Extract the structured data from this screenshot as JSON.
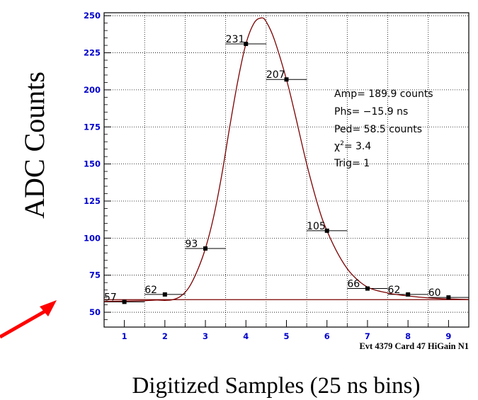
{
  "chart_data": {
    "type": "scatter",
    "title": "",
    "xlabel": "Digitized Samples (25 ns bins)",
    "ylabel": "ADC Counts",
    "xlim": [
      0.5,
      9.5
    ],
    "ylim": [
      40,
      252
    ],
    "x_ticks": [
      "1",
      "2",
      "3",
      "4",
      "5",
      "6",
      "7",
      "8",
      "9"
    ],
    "y_ticks": [
      "50",
      "75",
      "100",
      "125",
      "150",
      "175",
      "200",
      "225",
      "250"
    ],
    "grid": true,
    "points": [
      {
        "x": 1,
        "y": 57,
        "label": "57"
      },
      {
        "x": 2,
        "y": 62,
        "label": "62"
      },
      {
        "x": 3,
        "y": 93,
        "label": "93"
      },
      {
        "x": 4,
        "y": 231,
        "label": "231"
      },
      {
        "x": 5,
        "y": 207,
        "label": "207"
      },
      {
        "x": 6,
        "y": 105,
        "label": "105"
      },
      {
        "x": 7,
        "y": 66,
        "label": "66"
      },
      {
        "x": 8,
        "y": 62,
        "label": "62"
      },
      {
        "x": 9,
        "y": 60,
        "label": "60"
      }
    ],
    "pedestal_line": 58.5,
    "fit_curve": {
      "description_peak_y": 248,
      "samples": [
        [
          0.5,
          57.3
        ],
        [
          1.0,
          57.5
        ],
        [
          1.5,
          57.8
        ],
        [
          1.8,
          58.2
        ],
        [
          2.0,
          58.0
        ],
        [
          2.2,
          58.5
        ],
        [
          2.4,
          61
        ],
        [
          2.6,
          67
        ],
        [
          2.8,
          78
        ],
        [
          3.0,
          93
        ],
        [
          3.2,
          114
        ],
        [
          3.4,
          142
        ],
        [
          3.6,
          175
        ],
        [
          3.8,
          206
        ],
        [
          4.0,
          231
        ],
        [
          4.2,
          245
        ],
        [
          4.38,
          248.5
        ],
        [
          4.5,
          246
        ],
        [
          4.7,
          234
        ],
        [
          5.0,
          207
        ],
        [
          5.2,
          185
        ],
        [
          5.5,
          150
        ],
        [
          5.8,
          120
        ],
        [
          6.0,
          105
        ],
        [
          6.3,
          88
        ],
        [
          6.6,
          76
        ],
        [
          7.0,
          67
        ],
        [
          7.5,
          63
        ],
        [
          8.0,
          61
        ],
        [
          8.5,
          59.7
        ],
        [
          9.0,
          59
        ],
        [
          9.5,
          58.6
        ]
      ]
    },
    "fit_results": {
      "amp": "Amp= 189.9 counts",
      "phs": "Phs= −15.9 ns",
      "ped": "Ped= 58.5 counts",
      "chi2": "= 3.4",
      "chi2_symbol": "χ",
      "chi2_sup": "2",
      "trig": "Trig= 1"
    },
    "event_label": "Evt 4379 Card 47 HiGain N1",
    "colors": {
      "axis": "#000000",
      "tick_text": "#0000cc",
      "grid": "#000000",
      "curve": "#7a0000",
      "pedestal": "#7a0000",
      "arrow": "#ff0000"
    }
  }
}
